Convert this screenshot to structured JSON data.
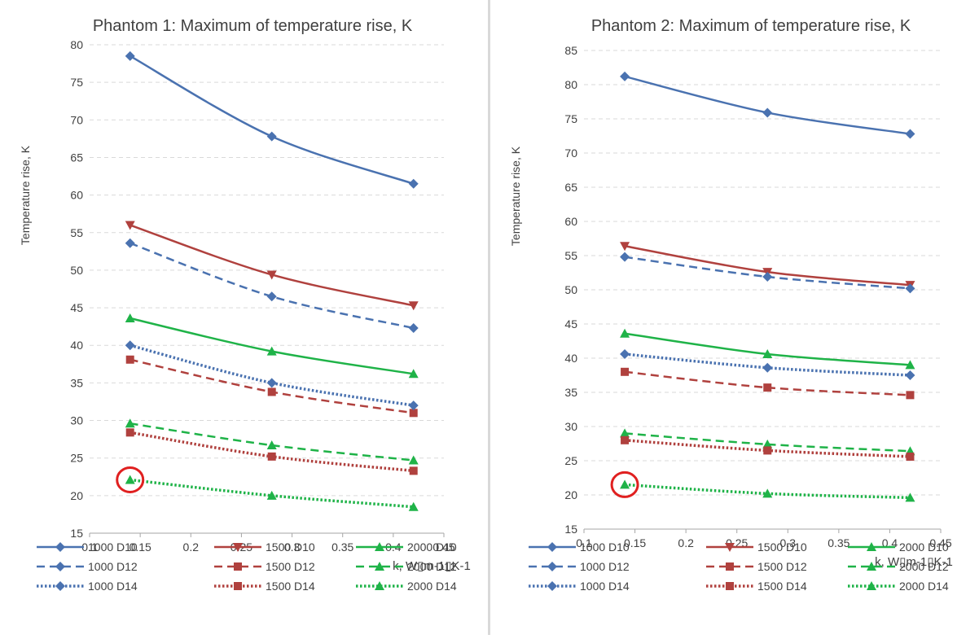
{
  "chart_data": [
    {
      "type": "line",
      "title": "Phantom 1: Maximum of temperature rise, K",
      "xlabel": "k, W▯m-1▯K-1",
      "ylabel": "Temperature rise, K",
      "xlim": [
        0.1,
        0.45
      ],
      "ylim": [
        15,
        80
      ],
      "xticks": [
        0.1,
        0.15,
        0.2,
        0.25,
        0.3,
        0.35,
        0.4,
        0.45
      ],
      "yticks": [
        15,
        20,
        25,
        30,
        35,
        40,
        45,
        50,
        55,
        60,
        65,
        70,
        75,
        80
      ],
      "grid": "horizontal",
      "legend_position": "bottom",
      "x": [
        0.14,
        0.28,
        0.42
      ],
      "series": [
        {
          "name": "1000 D10",
          "values": [
            78.5,
            67.8,
            61.5
          ]
        },
        {
          "name": "1500 D10",
          "values": [
            56.0,
            49.4,
            45.3
          ]
        },
        {
          "name": "2000 D10",
          "values": [
            43.6,
            39.2,
            36.2
          ]
        },
        {
          "name": "1000 D12",
          "values": [
            53.6,
            46.5,
            42.3
          ]
        },
        {
          "name": "1500 D12",
          "values": [
            38.1,
            33.8,
            31.0
          ]
        },
        {
          "name": "2000 D12",
          "values": [
            29.6,
            26.7,
            24.7
          ]
        },
        {
          "name": "1000 D14",
          "values": [
            40.0,
            35.0,
            32.0
          ]
        },
        {
          "name": "1500 D14",
          "values": [
            28.4,
            25.2,
            23.3
          ]
        },
        {
          "name": "2000 D14",
          "values": [
            22.1,
            20.0,
            18.5
          ]
        }
      ],
      "highlighted_point": {
        "series": "2000 D14",
        "x": 0.14
      }
    },
    {
      "type": "line",
      "title": "Phantom 2: Maximum of temperature rise, K",
      "xlabel": "k, W▯m-1▯K-1",
      "ylabel": "Temperature rise, K",
      "xlim": [
        0.1,
        0.45
      ],
      "ylim": [
        15,
        85
      ],
      "xticks": [
        0.1,
        0.15,
        0.2,
        0.25,
        0.3,
        0.35,
        0.4,
        0.45
      ],
      "yticks": [
        15,
        20,
        25,
        30,
        35,
        40,
        45,
        50,
        55,
        60,
        65,
        70,
        75,
        80,
        85
      ],
      "grid": "horizontal",
      "legend_position": "bottom",
      "x": [
        0.14,
        0.28,
        0.42
      ],
      "series": [
        {
          "name": "1000 D10",
          "values": [
            81.2,
            75.9,
            72.8
          ]
        },
        {
          "name": "1500 D10",
          "values": [
            56.4,
            52.6,
            50.7
          ]
        },
        {
          "name": "2000 D10",
          "values": [
            43.6,
            40.6,
            39.0
          ]
        },
        {
          "name": "1000 D12",
          "values": [
            54.8,
            51.9,
            50.2
          ]
        },
        {
          "name": "1500 D12",
          "values": [
            38.0,
            35.7,
            34.6
          ]
        },
        {
          "name": "2000 D12",
          "values": [
            29.0,
            27.4,
            26.4
          ]
        },
        {
          "name": "1000 D14",
          "values": [
            40.6,
            38.6,
            37.5
          ]
        },
        {
          "name": "1500 D14",
          "values": [
            28.0,
            26.5,
            25.6
          ]
        },
        {
          "name": "2000 D14",
          "values": [
            21.5,
            20.2,
            19.6
          ]
        }
      ],
      "highlighted_point": {
        "series": "2000 D14",
        "x": 0.14
      }
    }
  ],
  "series_style": {
    "1000 D10": {
      "color": "#4a72b0",
      "dash": "solid",
      "marker": "diamond"
    },
    "1500 D10": {
      "color": "#b0413e",
      "dash": "solid",
      "marker": "triangle-down"
    },
    "2000 D10": {
      "color": "#1fb348",
      "dash": "solid",
      "marker": "triangle-up"
    },
    "1000 D12": {
      "color": "#4a72b0",
      "dash": "dashed",
      "marker": "diamond"
    },
    "1500 D12": {
      "color": "#b0413e",
      "dash": "dashed",
      "marker": "square"
    },
    "2000 D12": {
      "color": "#1fb348",
      "dash": "dashed",
      "marker": "triangle-up"
    },
    "1000 D14": {
      "color": "#4a72b0",
      "dash": "dotted",
      "marker": "diamond"
    },
    "1500 D14": {
      "color": "#b0413e",
      "dash": "dotted",
      "marker": "square"
    },
    "2000 D14": {
      "color": "#1fb348",
      "dash": "dotted",
      "marker": "triangle-up"
    }
  },
  "highlight_color": "#e02020"
}
